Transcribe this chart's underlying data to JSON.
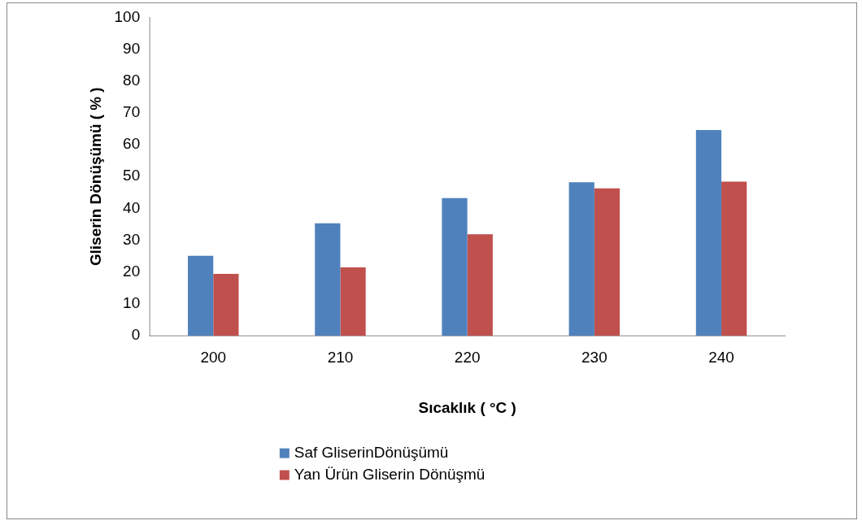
{
  "chart_data": {
    "type": "bar",
    "xlabel": "Sıcaklık ( °C )",
    "ylabel": "Gliserin Dönüşümü ( % )",
    "categories": [
      "200",
      "210",
      "220",
      "230",
      "240"
    ],
    "series": [
      {
        "name": "Saf GliserinDönüşümü",
        "color": "#4f81bd",
        "values": [
          25.1,
          35.3,
          43.2,
          48.2,
          64.6
        ]
      },
      {
        "name": "Yan Ürün Gliserin Dönüşmü",
        "color": "#c0504d",
        "values": [
          19.4,
          21.5,
          31.9,
          46.3,
          48.4
        ]
      }
    ],
    "ylim": [
      0,
      100
    ],
    "yticks": [
      0,
      10,
      20,
      30,
      40,
      50,
      60,
      70,
      80,
      90,
      100
    ],
    "grid": false,
    "legend": "bottom"
  }
}
